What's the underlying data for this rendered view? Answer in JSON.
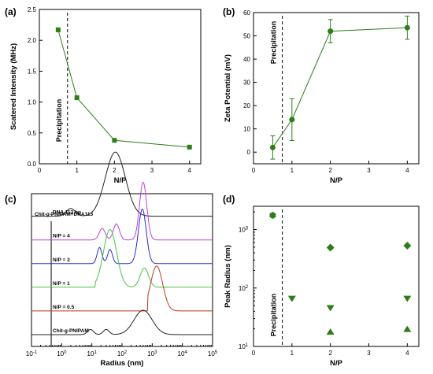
{
  "chart_data": [
    {
      "panel": "(a)",
      "type": "line",
      "xlabel": "N/P",
      "ylabel": "Scatered Intensity (MHz)",
      "xlim": [
        0,
        4.3
      ],
      "ylim": [
        0,
        2.5
      ],
      "xticks": [
        0,
        1,
        2,
        3,
        4
      ],
      "yticks": [
        0.0,
        0.5,
        1.0,
        1.5,
        2.0,
        2.5
      ],
      "ytick_labels": [
        "0.0",
        "0.5",
        "1.0",
        "1.5",
        "2.0",
        "2.5"
      ],
      "series": [
        {
          "x": [
            0.5,
            1,
            2,
            4
          ],
          "y": [
            2.17,
            1.07,
            0.38,
            0.27
          ],
          "marker": "square",
          "color": "#2e7d1a"
        }
      ],
      "threshold_x": 0.75,
      "annotation": "Precipitation"
    },
    {
      "panel": "(b)",
      "type": "line",
      "xlabel": "N/P",
      "ylabel": "Zeta Potential (mV)",
      "xlim": [
        0,
        4.3
      ],
      "ylim": [
        -5,
        60
      ],
      "xticks": [
        0,
        1,
        2,
        3,
        4
      ],
      "yticks": [
        0,
        10,
        20,
        30,
        40,
        50,
        60
      ],
      "series": [
        {
          "x": [
            0.5,
            1,
            2,
            4
          ],
          "y": [
            2,
            14,
            52,
            53.5
          ],
          "err": [
            5,
            9,
            5,
            5
          ],
          "marker": "circle",
          "color": "#2e7d1a"
        }
      ],
      "threshold_x": 0.75,
      "annotation": "Precipitation"
    },
    {
      "panel": "(c)",
      "type": "line",
      "xlabel": "Radius (nm)",
      "xscale": "log",
      "xlim": [
        0.1,
        100000
      ],
      "xtick_exponents": [
        -1,
        0,
        1,
        2,
        3,
        4,
        5
      ],
      "title": "Chit-g-PNIPAM+DNA113",
      "series": [
        {
          "name": "DNA 113 bp",
          "color": "#222222",
          "baseline": 0.9,
          "peaks": [
            {
              "c": 2,
              "w": 0.15,
              "h": 0.12
            },
            {
              "c": 60,
              "w": 0.33,
              "h": 1.0
            }
          ]
        },
        {
          "name": "N/P = 4",
          "color": "#c040e0",
          "baseline": 0.8,
          "peaks": [
            {
              "c": 22,
              "w": 0.1,
              "h": 0.18
            },
            {
              "c": 65,
              "w": 0.1,
              "h": 0.25
            },
            {
              "c": 500,
              "w": 0.12,
              "h": 0.9
            }
          ]
        },
        {
          "name": "N/P = 2",
          "color": "#2a2ad4",
          "baseline": 0.7,
          "peaks": [
            {
              "c": 18,
              "w": 0.08,
              "h": 0.25
            },
            {
              "c": 40,
              "w": 0.08,
              "h": 0.22
            },
            {
              "c": 470,
              "w": 0.13,
              "h": 0.85
            }
          ]
        },
        {
          "name": "N/P = 1",
          "color": "#44c444",
          "baseline": 0.6,
          "start": 13,
          "peaks": [
            {
              "c": 40,
              "w": 0.22,
              "h": 0.9
            },
            {
              "c": 550,
              "w": 0.14,
              "h": 0.3
            }
          ]
        },
        {
          "name": "N/P = 0.5",
          "color": "#b83a20",
          "baseline": 0.5,
          "start": 700,
          "peaks": [
            {
              "c": 1400,
              "w": 0.2,
              "h": 0.7
            }
          ]
        },
        {
          "name": "Chit-g-PNIPAM",
          "color": "#222222",
          "baseline": 0.4,
          "peaks": [
            {
              "c": 9,
              "w": 0.1,
              "h": 0.08
            },
            {
              "c": 30,
              "w": 0.1,
              "h": 0.08
            },
            {
              "c": 500,
              "w": 0.3,
              "h": 0.38
            }
          ]
        }
      ]
    },
    {
      "panel": "(d)",
      "type": "scatter",
      "xlabel": "N/P",
      "ylabel": "Peak Radius (nm)",
      "yscale": "log",
      "xlim": [
        0,
        4.3
      ],
      "ylim": [
        10,
        2500
      ],
      "xticks": [
        0,
        1,
        2,
        3,
        4
      ],
      "ytick_exponents": [
        1,
        2,
        3
      ],
      "series": [
        {
          "marker": "hexagon",
          "x": [
            0.5
          ],
          "y": [
            1750
          ],
          "color": "#2e7d1a"
        },
        {
          "marker": "diamond",
          "x": [
            2,
            4
          ],
          "y": [
            490,
            530
          ],
          "color": "#2e7d1a"
        },
        {
          "marker": "triangle-down",
          "x": [
            1,
            2,
            4
          ],
          "y": [
            65,
            45,
            65
          ],
          "color": "#2e7d1a"
        },
        {
          "marker": "triangle-up",
          "x": [
            2,
            4
          ],
          "y": [
            18,
            20
          ],
          "color": "#2e7d1a"
        }
      ],
      "threshold_x": 0.75,
      "annotation": "Precipitation"
    }
  ]
}
